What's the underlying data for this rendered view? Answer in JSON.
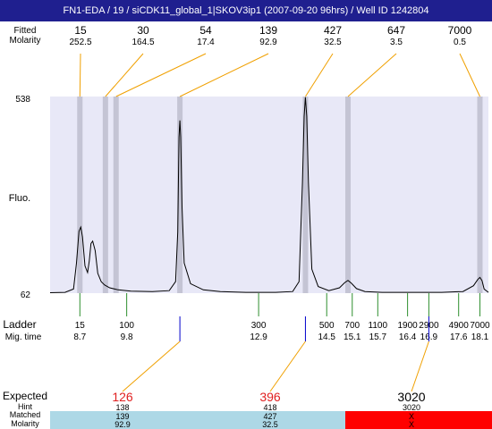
{
  "title": "FN1-EDA / 19 / siCDK11_global_1|SKOV3ip1 (2007-09-20 96hrs) / Well ID 1242804",
  "colors": {
    "title_bar": "#1f1f8f",
    "plot_bg": "#e8e8f7",
    "band": "#c4c4d4",
    "trace": "#000000",
    "connector": "#f0a000",
    "ladder_tick": "#2f8f2f",
    "peak_tick": "#0000cc",
    "expected_red": "#e02020",
    "row_blue": "#add8e6",
    "row_red": "#ff0000"
  },
  "top_labels": {
    "row1_label": "Fitted",
    "row2_label": "Molarity",
    "peaks": [
      {
        "size": "15",
        "molarity": "252.5",
        "mig": 8.7
      },
      {
        "size": "30",
        "molarity": "164.5",
        "mig": 9.3
      },
      {
        "size": "54",
        "molarity": "17.4",
        "mig": 9.55
      },
      {
        "size": "139",
        "molarity": "92.9",
        "mig": 11.05
      },
      {
        "size": "427",
        "molarity": "32.5",
        "mig": 14.0
      },
      {
        "size": "647",
        "molarity": "3.5",
        "mig": 15.0
      },
      {
        "size": "7000",
        "molarity": "0.5",
        "mig": 18.1
      }
    ]
  },
  "y_axis": {
    "label": "Fluo.",
    "top": "538",
    "bottom": "62"
  },
  "ladder": {
    "label": "Ladder",
    "mig_label": "Mig. time",
    "entries": [
      {
        "size": "15",
        "mig": "8.7"
      },
      {
        "size": "100",
        "mig": "9.8"
      },
      {
        "size": "300",
        "mig": "12.9"
      },
      {
        "size": "500",
        "mig": "14.5"
      },
      {
        "size": "700",
        "mig": "15.1"
      },
      {
        "size": "1100",
        "mig": "15.7"
      },
      {
        "size": "1900",
        "mig": "16.4"
      },
      {
        "size": "2900",
        "mig": "16.9"
      },
      {
        "size": "4900",
        "mig": "17.6"
      },
      {
        "size": "7000",
        "mig": "18.1"
      }
    ]
  },
  "chart_data": {
    "type": "line",
    "x_range": [
      8.0,
      18.3
    ],
    "ylim": [
      62,
      538
    ],
    "series": [
      {
        "x": [
          8.0,
          8.35,
          8.55,
          8.62,
          8.68,
          8.72,
          8.76,
          8.82,
          8.88,
          8.92,
          8.96,
          9.0,
          9.06,
          9.12,
          9.2,
          9.28,
          9.4,
          9.6,
          9.9,
          10.4,
          10.8,
          10.95,
          11.0,
          11.03,
          11.05,
          11.07,
          11.1,
          11.15,
          11.3,
          11.6,
          12.0,
          12.6,
          13.3,
          13.7,
          13.85,
          13.93,
          13.97,
          14.0,
          14.03,
          14.07,
          14.15,
          14.3,
          14.55,
          14.8,
          14.92,
          15.0,
          15.08,
          15.2,
          15.4,
          15.8,
          16.5,
          17.2,
          17.7,
          17.95,
          18.05,
          18.1,
          18.15,
          18.2,
          18.3
        ],
        "y": [
          63,
          64,
          72,
          135,
          212,
          222,
          198,
          128,
          112,
          140,
          182,
          188,
          165,
          110,
          90,
          82,
          75,
          70,
          67,
          66,
          68,
          90,
          210,
          440,
          480,
          440,
          270,
          135,
          85,
          70,
          66,
          64,
          64,
          66,
          90,
          330,
          490,
          536,
          490,
          330,
          120,
          78,
          68,
          75,
          87,
          93,
          86,
          73,
          66,
          64,
          64,
          64,
          66,
          80,
          95,
          100,
          92,
          72,
          64
        ]
      }
    ],
    "expected": [
      {
        "expected": "126",
        "hint": "138",
        "matched": "139",
        "molarity": "92.9",
        "mig": 11.05,
        "status": "match"
      },
      {
        "expected": "396",
        "hint": "418",
        "matched": "427",
        "molarity": "32.5",
        "mig": 14.0,
        "status": "match"
      },
      {
        "expected": "3020",
        "hint": "3020",
        "matched": "X",
        "molarity": "X",
        "mig": 16.9,
        "status": "missing"
      }
    ],
    "bottom_labels": {
      "expected": "Expected",
      "hint": "Hint",
      "matched": "Matched",
      "molarity": "Molarity"
    }
  }
}
